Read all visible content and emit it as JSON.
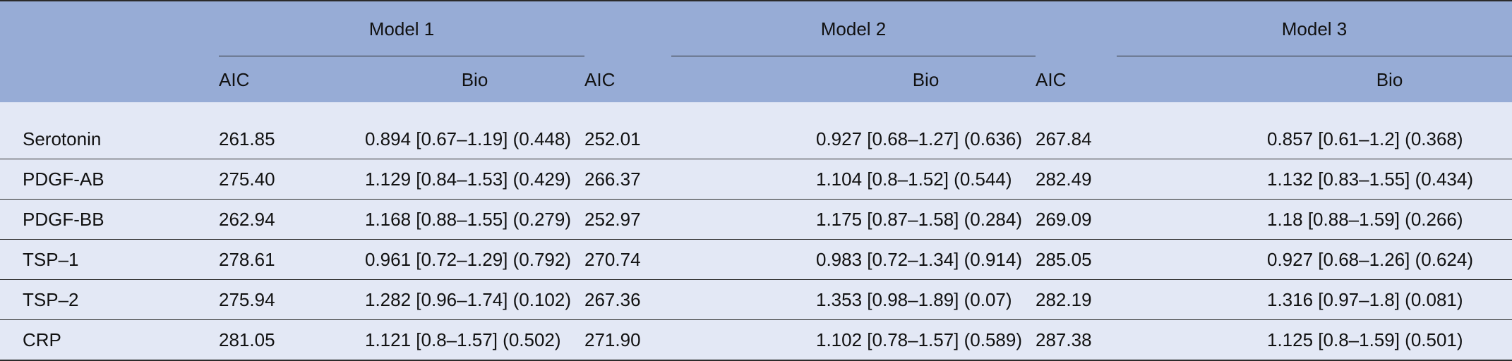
{
  "table": {
    "groups": [
      "Model 1",
      "Model 2",
      "Model 3"
    ],
    "subheaders": {
      "aic": "AIC",
      "bio": "Bio"
    },
    "rows": [
      {
        "name": "Serotonin",
        "m1_aic": "261.85",
        "m1_bio": "0.894 [0.67–1.19] (0.448)",
        "m2_aic": "252.01",
        "m2_bio": "0.927 [0.68–1.27] (0.636)",
        "m3_aic": "267.84",
        "m3_bio": "0.857 [0.61–1.2] (0.368)"
      },
      {
        "name": "PDGF-AB",
        "m1_aic": "275.40",
        "m1_bio": "1.129 [0.84–1.53] (0.429)",
        "m2_aic": "266.37",
        "m2_bio": "1.104 [0.8–1.52] (0.544)",
        "m3_aic": "282.49",
        "m3_bio": "1.132 [0.83–1.55] (0.434)"
      },
      {
        "name": "PDGF-BB",
        "m1_aic": "262.94",
        "m1_bio": "1.168 [0.88–1.55] (0.279)",
        "m2_aic": "252.97",
        "m2_bio": "1.175 [0.87–1.58] (0.284)",
        "m3_aic": "269.09",
        "m3_bio": "1.18 [0.88–1.59] (0.266)"
      },
      {
        "name": "TSP–1",
        "m1_aic": "278.61",
        "m1_bio": "0.961 [0.72–1.29] (0.792)",
        "m2_aic": "270.74",
        "m2_bio": "0.983 [0.72–1.34] (0.914)",
        "m3_aic": "285.05",
        "m3_bio": "0.927 [0.68–1.26] (0.624)"
      },
      {
        "name": "TSP–2",
        "m1_aic": "275.94",
        "m1_bio": "1.282 [0.96–1.74] (0.102)",
        "m2_aic": "267.36",
        "m2_bio": "1.353 [0.98–1.89] (0.07)",
        "m3_aic": "282.19",
        "m3_bio": "1.316 [0.97–1.8] (0.081)"
      },
      {
        "name": "CRP",
        "m1_aic": "281.05",
        "m1_bio": "1.121 [0.8–1.57] (0.502)",
        "m2_aic": "271.90",
        "m2_bio": "1.102 [0.78–1.57] (0.589)",
        "m3_aic": "287.38",
        "m3_bio": "1.125 [0.8–1.59] (0.501)"
      }
    ]
  },
  "colors": {
    "header_bg": "#97acd6",
    "body_bg": "#e3e8f5",
    "rule": "#2b2b2b"
  }
}
